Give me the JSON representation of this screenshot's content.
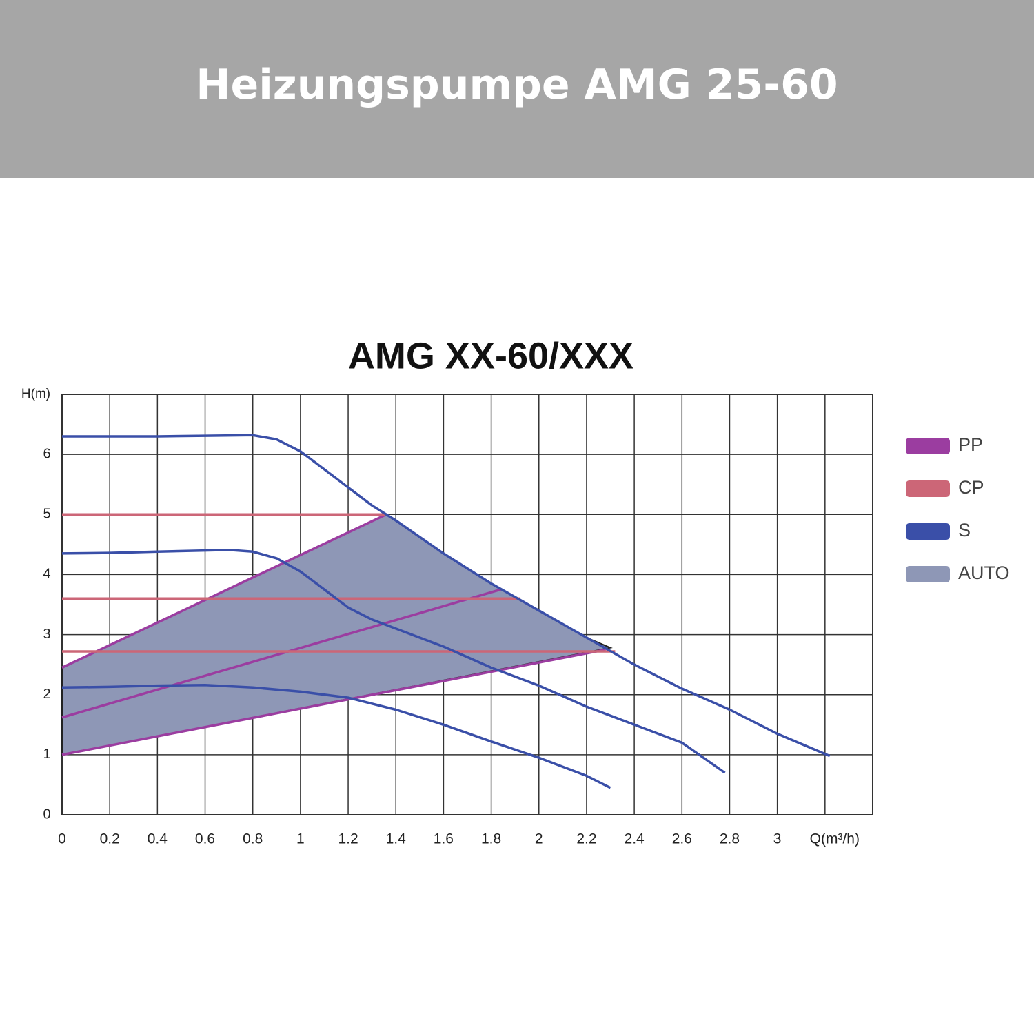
{
  "header": {
    "title": "Heizungspumpe AMG 25-60"
  },
  "chart_data": {
    "type": "line",
    "title": "AMG XX-60/XXX",
    "y_label": "H(m)",
    "xlim": [
      0,
      3.4
    ],
    "ylim": [
      0,
      7
    ],
    "xticks": [
      0,
      0.2,
      0.4,
      0.6,
      0.8,
      1,
      1.2,
      1.4,
      1.6,
      1.8,
      2,
      2.2,
      2.4,
      2.6,
      2.8,
      3,
      {
        "value": 3.2,
        "label": "Q(m³/h)"
      }
    ],
    "yticks": [
      0,
      1,
      2,
      3,
      4,
      5,
      6
    ],
    "grid": true,
    "legend": "right",
    "series": [
      {
        "name": "PP",
        "color": "#9b3da0",
        "curves": [
          {
            "x": [
              0,
              1.36
            ],
            "values": [
              2.45,
              5.0
            ]
          },
          {
            "x": [
              0,
              1.84
            ],
            "values": [
              1.62,
              3.75
            ]
          },
          {
            "x": [
              0,
              2.28
            ],
            "values": [
              1.0,
              2.75
            ]
          }
        ]
      },
      {
        "name": "CP",
        "color": "#cc6677",
        "curves": [
          {
            "x": [
              0,
              1.36
            ],
            "values": [
              5.0,
              5.0
            ]
          },
          {
            "x": [
              0,
              1.92
            ],
            "values": [
              3.6,
              3.6
            ]
          },
          {
            "x": [
              0,
              2.32
            ],
            "values": [
              2.72,
              2.72
            ]
          }
        ]
      },
      {
        "name": "S",
        "color": "#3a4fa8",
        "curves": [
          {
            "x": [
              0,
              0.2,
              0.4,
              0.6,
              0.8,
              0.9,
              1.0,
              1.1,
              1.2,
              1.3,
              1.4,
              1.6,
              1.8,
              2.0,
              2.2,
              2.4,
              2.6,
              2.8,
              3.0,
              3.22
            ],
            "values": [
              6.3,
              6.3,
              6.3,
              6.31,
              6.32,
              6.25,
              6.05,
              5.75,
              5.45,
              5.15,
              4.9,
              4.35,
              3.85,
              3.4,
              2.95,
              2.5,
              2.1,
              1.75,
              1.35,
              0.98
            ]
          },
          {
            "x": [
              0,
              0.2,
              0.4,
              0.6,
              0.7,
              0.8,
              0.9,
              1.0,
              1.1,
              1.2,
              1.3,
              1.4,
              1.6,
              1.8,
              2.0,
              2.2,
              2.4,
              2.6,
              2.78
            ],
            "values": [
              4.35,
              4.36,
              4.38,
              4.4,
              4.41,
              4.38,
              4.27,
              4.05,
              3.75,
              3.45,
              3.25,
              3.1,
              2.8,
              2.45,
              2.15,
              1.8,
              1.5,
              1.2,
              0.7
            ]
          },
          {
            "x": [
              0,
              0.2,
              0.4,
              0.6,
              0.8,
              1.0,
              1.2,
              1.4,
              1.6,
              1.8,
              2.0,
              2.2,
              2.3
            ],
            "values": [
              2.12,
              2.13,
              2.15,
              2.16,
              2.12,
              2.05,
              1.95,
              1.75,
              1.5,
              1.22,
              0.95,
              0.65,
              0.45
            ]
          }
        ]
      },
      {
        "name": "AUTO",
        "color": "#8e97b6",
        "fill": true,
        "curves": [
          {
            "x": [
              0,
              0,
              1.36,
              1.6,
              1.8,
              2.0,
              2.2,
              2.3
            ],
            "values": [
              1.0,
              2.45,
              5.0,
              4.35,
              3.85,
              3.4,
              2.95,
              2.78
            ]
          }
        ]
      }
    ]
  }
}
